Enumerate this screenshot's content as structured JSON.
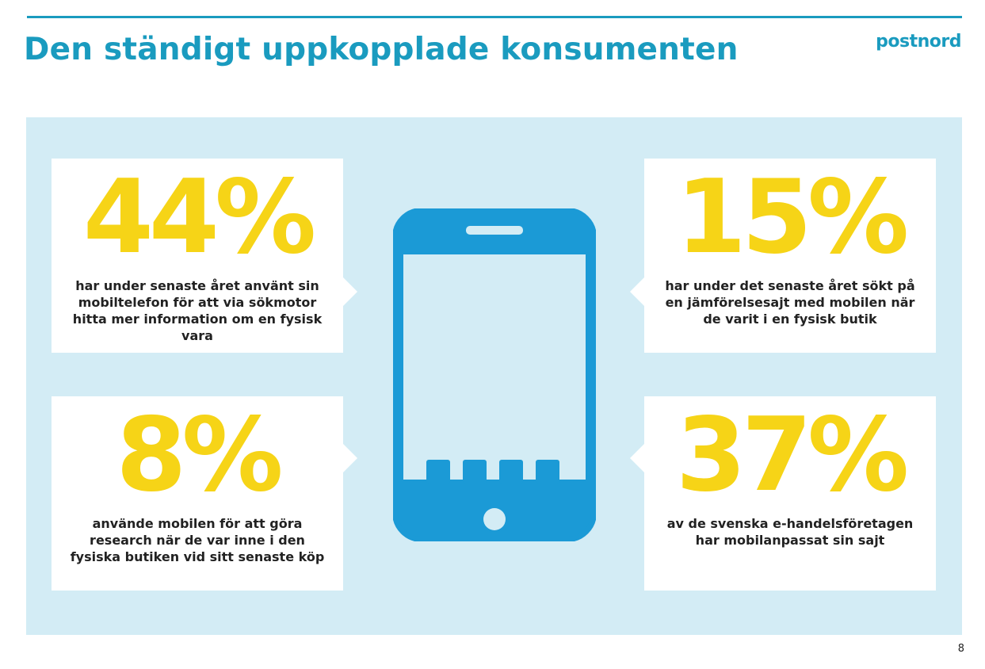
{
  "header": {
    "title": "Den ständigt uppkopplade konsumenten",
    "logo_text": "postnord"
  },
  "colors": {
    "accent": "#1a9bbf",
    "panel_background": "#d3ecf5",
    "stat_yellow": "#f6d417",
    "phone_blue": "#1b9ad6"
  },
  "stats": [
    {
      "value": "44%",
      "text": "har under senaste året använt sin mobiltelefon för att via sökmotor hitta mer information om en fysisk vara"
    },
    {
      "value": "15%",
      "text": "har under det senaste året sökt på en jämförelsesajt med mobilen när de varit i en fysisk butik"
    },
    {
      "value": "8%",
      "text": "använde mobilen för att göra research när de var inne i den fysiska butiken vid sitt senaste köp"
    },
    {
      "value": "37%",
      "text": "av de svenska e-handelsföretagen har mobilanpassat sin sajt"
    }
  ],
  "illustration": {
    "icon": "smartphone-icon",
    "app_icon_count": 4
  },
  "footer": {
    "page_number": "8"
  }
}
